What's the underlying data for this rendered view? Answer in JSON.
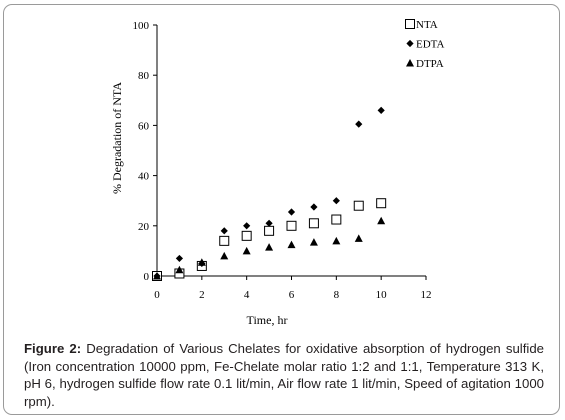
{
  "chart_data": {
    "type": "scatter",
    "title": "",
    "xlabel": "Time, hr",
    "ylabel": "% Degradation of NTA",
    "xlim": [
      0,
      12
    ],
    "ylim": [
      0,
      100
    ],
    "xticks": [
      "0",
      "2",
      "4",
      "6",
      "8",
      "10",
      "12"
    ],
    "yticks": [
      "0",
      "20",
      "40",
      "60",
      "80",
      "100"
    ],
    "grid": false,
    "legend_position": "top-right",
    "series": [
      {
        "name": "NTA",
        "marker": "open-square",
        "color": "#000000",
        "x": [
          0,
          1,
          2,
          3,
          4,
          5,
          6,
          7,
          8,
          9,
          10
        ],
        "y": [
          0,
          1,
          4,
          14,
          16,
          18,
          20,
          21,
          22.5,
          28,
          29
        ]
      },
      {
        "name": "EDTA",
        "marker": "diamond",
        "color": "#000000",
        "x": [
          0,
          1,
          2,
          3,
          4,
          5,
          6,
          7,
          8,
          9,
          10
        ],
        "y": [
          0,
          7,
          5,
          18,
          20,
          21,
          25.5,
          27.5,
          30,
          60.5,
          66
        ]
      },
      {
        "name": "DTPA",
        "marker": "triangle",
        "color": "#000000",
        "x": [
          0,
          1,
          2,
          3,
          4,
          5,
          6,
          7,
          8,
          9,
          10
        ],
        "y": [
          0,
          2.5,
          5.5,
          8,
          10,
          11.5,
          12.5,
          13.5,
          14,
          15,
          22
        ]
      }
    ]
  },
  "caption": {
    "label": "Figure 2:",
    "text": " Degradation of Various Chelates for oxidative absorption of hydrogen sulfide (Iron concentration 10000 ppm, Fe-Chelate molar ratio 1:2 and 1:1, Temperature 313 K, pH 6, hydrogen sulfide flow rate 0.1 lit/min, Air flow rate 1 lit/min, Speed of agitation 1000 rpm)."
  }
}
